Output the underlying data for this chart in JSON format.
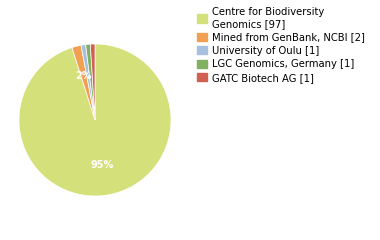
{
  "labels": [
    "Centre for Biodiversity\nGenomics [97]",
    "Mined from GenBank, NCBI [2]",
    "University of Oulu [1]",
    "LGC Genomics, Germany [1]",
    "GATC Biotech AG [1]"
  ],
  "values": [
    97,
    2,
    1,
    1,
    1
  ],
  "colors": [
    "#d4e17a",
    "#f0a050",
    "#a8c0e0",
    "#80b060",
    "#d06050"
  ],
  "background_color": "#ffffff",
  "text_color": "#ffffff",
  "font_size": 7.0,
  "legend_font_size": 7.2
}
